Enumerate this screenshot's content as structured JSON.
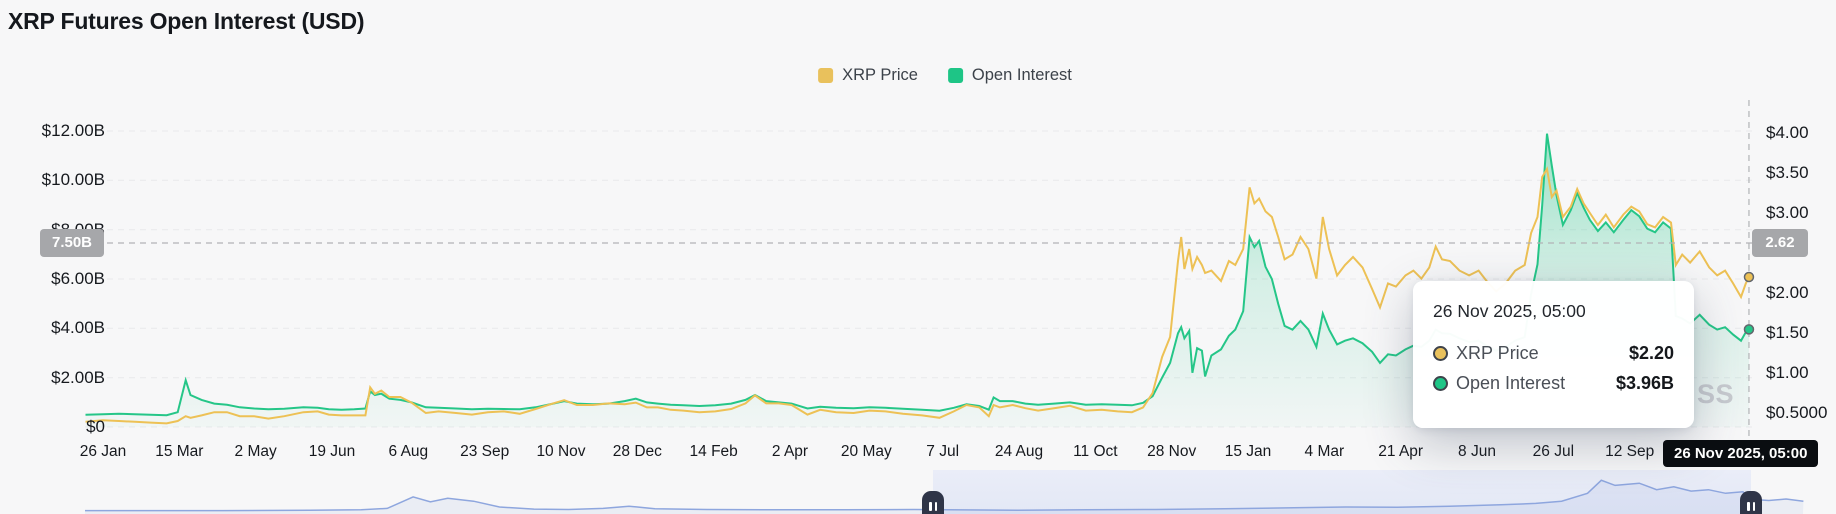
{
  "title": "XRP Futures Open Interest (USD)",
  "legend": [
    {
      "label": "XRP Price",
      "color": "#e9c15c"
    },
    {
      "label": "Open Interest",
      "color": "#1ec586"
    }
  ],
  "left_axis": {
    "tick_labels": [
      "$12.00B",
      "$10.00B",
      "$8.00B",
      "$6.00B",
      "$4.00B",
      "$2.00B",
      "$0"
    ],
    "crosshair_badge": "7.50B"
  },
  "right_axis": {
    "tick_labels": [
      "$4.00",
      "$3.50",
      "$3.00",
      "$2.00",
      "$1.50",
      "$1.00",
      "$0.5000"
    ],
    "crosshair_badge": "2.62"
  },
  "x_axis": {
    "labels": [
      "26 Jan",
      "15 Mar",
      "2 May",
      "19 Jun",
      "6 Aug",
      "23 Sep",
      "10 Nov",
      "28 Dec",
      "14 Feb",
      "2 Apr",
      "20 May",
      "7 Jul",
      "24 Aug",
      "11 Oct",
      "28 Nov",
      "15 Jan",
      "4 Mar",
      "21 Apr",
      "8 Jun",
      "26 Jul",
      "12 Sep"
    ],
    "crosshair_badge": "26 Nov 2025, 05:00"
  },
  "tooltip": {
    "header": "26 Nov 2025, 05:00",
    "rows": [
      {
        "label": "XRP Price",
        "value": "$2.20",
        "color": "#e9c15c"
      },
      {
        "label": "Open Interest",
        "value": "$3.96B",
        "color": "#1ec586"
      }
    ]
  },
  "watermark": "SS",
  "colors": {
    "price_line": "#edc155",
    "oi_line": "#25c688",
    "grid": "#e8e9eb",
    "crosshair": "#b2b3b6",
    "nav_line": "#8ea6de"
  },
  "chart_data": {
    "type": "line",
    "title": "XRP Futures Open Interest (USD)",
    "series": [
      {
        "name": "XRP Price",
        "axis": "right",
        "unit": "USD",
        "color": "#edc155"
      },
      {
        "name": "Open Interest",
        "axis": "left",
        "unit": "USD billions",
        "color": "#25c688"
      }
    ],
    "left_axis_range_busd": [
      0,
      13.3
    ],
    "right_axis_range_usd": [
      0.32,
      4.42
    ],
    "crosshair": {
      "date": "26 Nov 2025, 05:00",
      "price_usd": 2.2,
      "open_interest_busd": 3.96,
      "left_value_busd": 7.5,
      "right_value_usd": 2.62
    },
    "points_format": [
      "date",
      "xrp_price_usd",
      "open_interest_busd"
    ],
    "points": [
      [
        "2023-01-15",
        0.39,
        0.5
      ],
      [
        "2023-01-26",
        0.41,
        0.52
      ],
      [
        "2023-02-05",
        0.4,
        0.54
      ],
      [
        "2023-02-15",
        0.39,
        0.52
      ],
      [
        "2023-02-25",
        0.38,
        0.5
      ],
      [
        "2023-03-07",
        0.37,
        0.48
      ],
      [
        "2023-03-14",
        0.4,
        0.6
      ],
      [
        "2023-03-19",
        0.46,
        1.9
      ],
      [
        "2023-03-22",
        0.44,
        1.3
      ],
      [
        "2023-03-29",
        0.47,
        1.1
      ],
      [
        "2023-04-06",
        0.51,
        0.95
      ],
      [
        "2023-04-14",
        0.51,
        0.9
      ],
      [
        "2023-04-22",
        0.46,
        0.8
      ],
      [
        "2023-05-01",
        0.46,
        0.75
      ],
      [
        "2023-05-10",
        0.43,
        0.72
      ],
      [
        "2023-05-20",
        0.46,
        0.74
      ],
      [
        "2023-06-01",
        0.51,
        0.8
      ],
      [
        "2023-06-10",
        0.52,
        0.78
      ],
      [
        "2023-06-17",
        0.48,
        0.72
      ],
      [
        "2023-06-25",
        0.47,
        0.7
      ],
      [
        "2023-07-03",
        0.47,
        0.72
      ],
      [
        "2023-07-10",
        0.47,
        0.75
      ],
      [
        "2023-07-13",
        0.82,
        1.45
      ],
      [
        "2023-07-16",
        0.74,
        1.3
      ],
      [
        "2023-07-20",
        0.78,
        1.35
      ],
      [
        "2023-07-25",
        0.7,
        1.15
      ],
      [
        "2023-08-01",
        0.7,
        1.1
      ],
      [
        "2023-08-08",
        0.63,
        1.0
      ],
      [
        "2023-08-17",
        0.5,
        0.8
      ],
      [
        "2023-08-25",
        0.52,
        0.78
      ],
      [
        "2023-09-05",
        0.5,
        0.75
      ],
      [
        "2023-09-15",
        0.48,
        0.72
      ],
      [
        "2023-09-25",
        0.51,
        0.74
      ],
      [
        "2023-10-05",
        0.52,
        0.73
      ],
      [
        "2023-10-15",
        0.49,
        0.72
      ],
      [
        "2023-10-25",
        0.55,
        0.8
      ],
      [
        "2023-11-05",
        0.62,
        0.95
      ],
      [
        "2023-11-12",
        0.66,
        1.05
      ],
      [
        "2023-11-20",
        0.6,
        0.95
      ],
      [
        "2023-11-30",
        0.6,
        0.92
      ],
      [
        "2023-12-10",
        0.62,
        0.95
      ],
      [
        "2023-12-20",
        0.61,
        1.05
      ],
      [
        "2023-12-27",
        0.63,
        1.15
      ],
      [
        "2024-01-03",
        0.57,
        1.0
      ],
      [
        "2024-01-10",
        0.57,
        0.95
      ],
      [
        "2024-01-18",
        0.54,
        0.9
      ],
      [
        "2024-01-26",
        0.53,
        0.88
      ],
      [
        "2024-02-05",
        0.51,
        0.85
      ],
      [
        "2024-02-15",
        0.52,
        0.88
      ],
      [
        "2024-02-25",
        0.55,
        0.95
      ],
      [
        "2024-03-05",
        0.62,
        1.1
      ],
      [
        "2024-03-11",
        0.72,
        1.3
      ],
      [
        "2024-03-18",
        0.62,
        1.05
      ],
      [
        "2024-03-26",
        0.62,
        1.0
      ],
      [
        "2024-04-03",
        0.6,
        0.95
      ],
      [
        "2024-04-13",
        0.48,
        0.75
      ],
      [
        "2024-04-21",
        0.54,
        0.82
      ],
      [
        "2024-05-01",
        0.51,
        0.78
      ],
      [
        "2024-05-12",
        0.5,
        0.76
      ],
      [
        "2024-05-22",
        0.53,
        0.8
      ],
      [
        "2024-06-01",
        0.52,
        0.78
      ],
      [
        "2024-06-12",
        0.49,
        0.74
      ],
      [
        "2024-06-24",
        0.47,
        0.7
      ],
      [
        "2024-07-05",
        0.44,
        0.66
      ],
      [
        "2024-07-14",
        0.52,
        0.78
      ],
      [
        "2024-07-22",
        0.6,
        0.92
      ],
      [
        "2024-07-30",
        0.57,
        0.85
      ],
      [
        "2024-08-05",
        0.46,
        0.7
      ],
      [
        "2024-08-08",
        0.6,
        1.2
      ],
      [
        "2024-08-12",
        0.57,
        1.05
      ],
      [
        "2024-08-20",
        0.6,
        1.05
      ],
      [
        "2024-08-28",
        0.56,
        0.95
      ],
      [
        "2024-09-05",
        0.53,
        0.9
      ],
      [
        "2024-09-15",
        0.56,
        0.95
      ],
      [
        "2024-09-25",
        0.59,
        1.0
      ],
      [
        "2024-10-05",
        0.53,
        0.9
      ],
      [
        "2024-10-15",
        0.54,
        0.92
      ],
      [
        "2024-10-25",
        0.52,
        0.9
      ],
      [
        "2024-11-03",
        0.51,
        0.88
      ],
      [
        "2024-11-10",
        0.57,
        0.98
      ],
      [
        "2024-11-16",
        0.75,
        1.25
      ],
      [
        "2024-11-22",
        1.2,
        2.0
      ],
      [
        "2024-11-27",
        1.45,
        2.6
      ],
      [
        "2024-12-02",
        2.4,
        3.8
      ],
      [
        "2024-12-04",
        2.7,
        4.05
      ],
      [
        "2024-12-06",
        2.3,
        3.6
      ],
      [
        "2024-12-09",
        2.55,
        3.9
      ],
      [
        "2024-12-11",
        2.3,
        2.2
      ],
      [
        "2024-12-14",
        2.45,
        3.2
      ],
      [
        "2024-12-17",
        2.35,
        3.1
      ],
      [
        "2024-12-19",
        2.25,
        2.05
      ],
      [
        "2024-12-23",
        2.28,
        2.9
      ],
      [
        "2024-12-29",
        2.15,
        3.15
      ],
      [
        "2025-01-03",
        2.4,
        3.7
      ],
      [
        "2025-01-07",
        2.35,
        3.95
      ],
      [
        "2025-01-12",
        2.55,
        4.7
      ],
      [
        "2025-01-16",
        3.32,
        7.7
      ],
      [
        "2025-01-19",
        3.12,
        7.3
      ],
      [
        "2025-01-22",
        3.18,
        7.55
      ],
      [
        "2025-01-26",
        3.02,
        6.5
      ],
      [
        "2025-01-30",
        2.95,
        6.0
      ],
      [
        "2025-02-03",
        2.7,
        5.0
      ],
      [
        "2025-02-07",
        2.42,
        4.1
      ],
      [
        "2025-02-12",
        2.48,
        3.95
      ],
      [
        "2025-02-17",
        2.7,
        4.3
      ],
      [
        "2025-02-22",
        2.55,
        3.95
      ],
      [
        "2025-02-27",
        2.18,
        3.25
      ],
      [
        "2025-03-03",
        2.95,
        4.6
      ],
      [
        "2025-03-07",
        2.55,
        3.95
      ],
      [
        "2025-03-12",
        2.22,
        3.35
      ],
      [
        "2025-03-17",
        2.35,
        3.5
      ],
      [
        "2025-03-22",
        2.45,
        3.6
      ],
      [
        "2025-03-28",
        2.32,
        3.4
      ],
      [
        "2025-04-03",
        2.05,
        3.05
      ],
      [
        "2025-04-08",
        1.82,
        2.6
      ],
      [
        "2025-04-13",
        2.12,
        2.95
      ],
      [
        "2025-04-18",
        2.08,
        2.9
      ],
      [
        "2025-04-24",
        2.22,
        3.15
      ],
      [
        "2025-04-29",
        2.28,
        3.3
      ],
      [
        "2025-05-04",
        2.18,
        3.25
      ],
      [
        "2025-05-09",
        2.32,
        3.5
      ],
      [
        "2025-05-13",
        2.58,
        3.95
      ],
      [
        "2025-05-17",
        2.42,
        3.8
      ],
      [
        "2025-05-22",
        2.4,
        3.78
      ],
      [
        "2025-05-28",
        2.28,
        3.6
      ],
      [
        "2025-06-03",
        2.22,
        3.45
      ],
      [
        "2025-06-09",
        2.28,
        3.5
      ],
      [
        "2025-06-14",
        2.15,
        3.3
      ],
      [
        "2025-06-20",
        2.02,
        3.1
      ],
      [
        "2025-06-26",
        2.12,
        3.25
      ],
      [
        "2025-07-02",
        2.28,
        3.5
      ],
      [
        "2025-07-08",
        2.35,
        3.65
      ],
      [
        "2025-07-12",
        2.75,
        5.4
      ],
      [
        "2025-07-16",
        2.95,
        6.6
      ],
      [
        "2025-07-19",
        3.45,
        9.0
      ],
      [
        "2025-07-22",
        3.55,
        11.9
      ],
      [
        "2025-07-25",
        3.2,
        10.6
      ],
      [
        "2025-07-28",
        3.28,
        9.4
      ],
      [
        "2025-08-01",
        2.95,
        8.2
      ],
      [
        "2025-08-06",
        3.08,
        8.8
      ],
      [
        "2025-08-10",
        3.3,
        9.5
      ],
      [
        "2025-08-14",
        3.12,
        8.9
      ],
      [
        "2025-08-18",
        3.0,
        8.4
      ],
      [
        "2025-08-23",
        2.85,
        7.95
      ],
      [
        "2025-08-28",
        2.98,
        8.3
      ],
      [
        "2025-09-02",
        2.82,
        7.9
      ],
      [
        "2025-09-08",
        2.98,
        8.4
      ],
      [
        "2025-09-13",
        3.08,
        8.8
      ],
      [
        "2025-09-18",
        3.02,
        8.55
      ],
      [
        "2025-09-23",
        2.86,
        8.05
      ],
      [
        "2025-09-28",
        2.82,
        7.9
      ],
      [
        "2025-10-03",
        2.95,
        8.3
      ],
      [
        "2025-10-08",
        2.88,
        8.05
      ],
      [
        "2025-10-11",
        2.35,
        4.5
      ],
      [
        "2025-10-15",
        2.48,
        4.4
      ],
      [
        "2025-10-20",
        2.38,
        4.2
      ],
      [
        "2025-10-26",
        2.52,
        4.55
      ],
      [
        "2025-11-01",
        2.32,
        4.15
      ],
      [
        "2025-11-06",
        2.22,
        3.95
      ],
      [
        "2025-11-11",
        2.28,
        4.05
      ],
      [
        "2025-11-16",
        2.12,
        3.75
      ],
      [
        "2025-11-21",
        1.95,
        3.5
      ],
      [
        "2025-11-24",
        2.12,
        3.85
      ],
      [
        "2025-11-26",
        2.2,
        3.96
      ]
    ],
    "navigator": {
      "points_format": [
        "x_fraction",
        "height_fraction"
      ],
      "points": [
        [
          0,
          0.04
        ],
        [
          0.08,
          0.04
        ],
        [
          0.13,
          0.05
        ],
        [
          0.16,
          0.06
        ],
        [
          0.175,
          0.1
        ],
        [
          0.19,
          0.42
        ],
        [
          0.2,
          0.28
        ],
        [
          0.21,
          0.38
        ],
        [
          0.225,
          0.3
        ],
        [
          0.24,
          0.14
        ],
        [
          0.26,
          0.08
        ],
        [
          0.28,
          0.07
        ],
        [
          0.3,
          0.1
        ],
        [
          0.315,
          0.16
        ],
        [
          0.33,
          0.09
        ],
        [
          0.36,
          0.07
        ],
        [
          0.4,
          0.06
        ],
        [
          0.44,
          0.06
        ],
        [
          0.48,
          0.07
        ],
        [
          0.5,
          0.06
        ],
        [
          0.54,
          0.05
        ],
        [
          0.58,
          0.06
        ],
        [
          0.62,
          0.07
        ],
        [
          0.66,
          0.09
        ],
        [
          0.7,
          0.12
        ],
        [
          0.73,
          0.14
        ],
        [
          0.76,
          0.13
        ],
        [
          0.79,
          0.16
        ],
        [
          0.82,
          0.2
        ],
        [
          0.84,
          0.24
        ],
        [
          0.855,
          0.3
        ],
        [
          0.87,
          0.52
        ],
        [
          0.878,
          0.88
        ],
        [
          0.886,
          0.74
        ],
        [
          0.9,
          0.8
        ],
        [
          0.91,
          0.62
        ],
        [
          0.92,
          0.7
        ],
        [
          0.93,
          0.58
        ],
        [
          0.94,
          0.62
        ],
        [
          0.95,
          0.52
        ],
        [
          0.96,
          0.56
        ],
        [
          0.965,
          0.35
        ],
        [
          0.975,
          0.32
        ],
        [
          0.985,
          0.36
        ],
        [
          0.995,
          0.3
        ]
      ]
    }
  }
}
